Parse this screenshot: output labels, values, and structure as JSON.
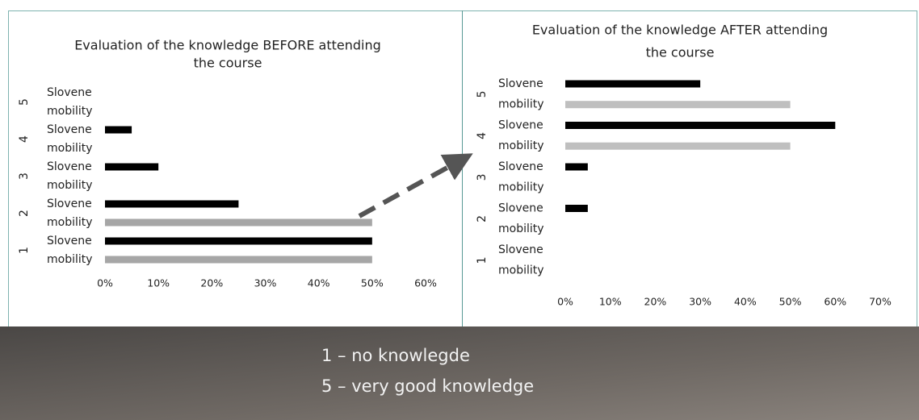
{
  "chart_data": [
    {
      "type": "bar",
      "orientation": "horizontal",
      "title": [
        "Evaluation of the knowledge BEFORE attending",
        "the course"
      ],
      "categories": [
        "1",
        "2",
        "3",
        "4",
        "5"
      ],
      "series": [
        {
          "name": "Slovene",
          "color": "#000000",
          "values": [
            50,
            25,
            10,
            5,
            0
          ]
        },
        {
          "name": "mobility",
          "color": "#a6a6a6",
          "values": [
            50,
            50,
            0,
            0,
            0
          ]
        }
      ],
      "xlim": [
        0,
        60
      ],
      "xticks": [
        {
          "value": 0,
          "label": "0%"
        },
        {
          "value": 10,
          "label": "10%"
        },
        {
          "value": 20,
          "label": "20%"
        },
        {
          "value": 30,
          "label": "30%"
        },
        {
          "value": 40,
          "label": "40%"
        },
        {
          "value": 50,
          "label": "50%"
        },
        {
          "value": 60,
          "label": "60%"
        }
      ]
    },
    {
      "type": "bar",
      "orientation": "horizontal",
      "title": [
        "Evaluation of the knowledge AFTER attending",
        "the course"
      ],
      "categories": [
        "1",
        "2",
        "3",
        "4",
        "5"
      ],
      "series": [
        {
          "name": "Slovene",
          "color": "#000000",
          "values": [
            0,
            5,
            5,
            60,
            30
          ]
        },
        {
          "name": "mobility",
          "color": "#bfbfbf",
          "values": [
            0,
            0,
            0,
            50,
            50
          ]
        }
      ],
      "xlim": [
        0,
        70
      ],
      "xticks": [
        {
          "value": 0,
          "label": "0%"
        },
        {
          "value": 10,
          "label": "10%"
        },
        {
          "value": 20,
          "label": "20%"
        },
        {
          "value": 30,
          "label": "30%"
        },
        {
          "value": 40,
          "label": "40%"
        },
        {
          "value": 50,
          "label": "50%"
        },
        {
          "value": 60,
          "label": "60%"
        },
        {
          "value": 70,
          "label": "70%"
        }
      ]
    }
  ],
  "footer": {
    "lines": [
      "1 – no knowlegde",
      "5 – very good knowledge"
    ]
  }
}
